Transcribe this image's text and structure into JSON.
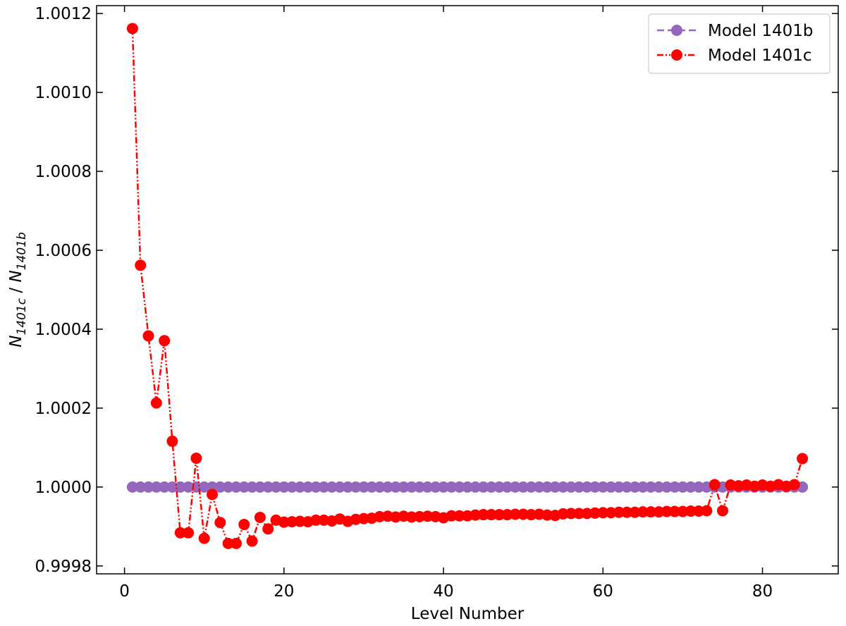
{
  "chart_data": {
    "type": "line",
    "title": "",
    "xlabel": "Level Number",
    "ylabel": {
      "base1": "N",
      "sub1": "1401c",
      "separator": " / ",
      "base2": "N",
      "sub2": "1401b"
    },
    "xlim": [
      -3.5,
      89.5
    ],
    "ylim": [
      0.99978,
      1.00122
    ],
    "xticks": [
      0,
      20,
      40,
      60,
      80
    ],
    "xtick_labels": [
      "0",
      "20",
      "40",
      "60",
      "80"
    ],
    "yticks": [
      0.9998,
      1.0,
      1.0002,
      1.0004,
      1.0006,
      1.0008,
      1.001,
      1.0012
    ],
    "ytick_labels": [
      "0.9998",
      "1.0000",
      "1.0002",
      "1.0004",
      "1.0006",
      "1.0008",
      "1.0010",
      "1.0012"
    ],
    "grid": false,
    "legend_position": "top-right",
    "series": [
      {
        "name": "Model 1401b",
        "color": "#9467bd",
        "linestyle": "dashed",
        "x_start": 1,
        "x_end": 85,
        "constant_value": 1.0
      },
      {
        "name": "Model 1401c",
        "color": "#ff0000",
        "linestyle": "dashdotdot",
        "x_start": 1,
        "values": [
          1.001162,
          1.000562,
          1.000383,
          1.000213,
          1.000371,
          1.000116,
          0.999884,
          0.999884,
          1.000073,
          0.99987,
          0.999981,
          0.99991,
          0.999857,
          0.999857,
          0.999905,
          0.999863,
          0.999923,
          0.999894,
          0.999916,
          0.999911,
          0.999912,
          0.999913,
          0.999912,
          0.999916,
          0.999916,
          0.999914,
          0.999919,
          0.999913,
          0.999918,
          0.99992,
          0.999921,
          0.999925,
          0.999926,
          0.999924,
          0.999926,
          0.999924,
          0.999925,
          0.999926,
          0.999925,
          0.999922,
          0.999927,
          0.999927,
          0.999927,
          0.999929,
          0.99993,
          0.99993,
          0.99993,
          0.99993,
          0.999931,
          0.999931,
          0.99993,
          0.999931,
          0.999929,
          0.999928,
          0.999932,
          0.999933,
          0.999933,
          0.999933,
          0.999934,
          0.999935,
          0.999935,
          0.999936,
          0.999936,
          0.999936,
          0.999937,
          0.999937,
          0.999937,
          0.999938,
          0.999938,
          0.999938,
          0.999939,
          0.999939,
          0.99994,
          1.000006,
          0.99994,
          1.000005,
          1.000003,
          1.000005,
          1.000002,
          1.000005,
          1.000002,
          1.000006,
          1.000002,
          1.000006,
          1.000072
        ]
      }
    ]
  }
}
